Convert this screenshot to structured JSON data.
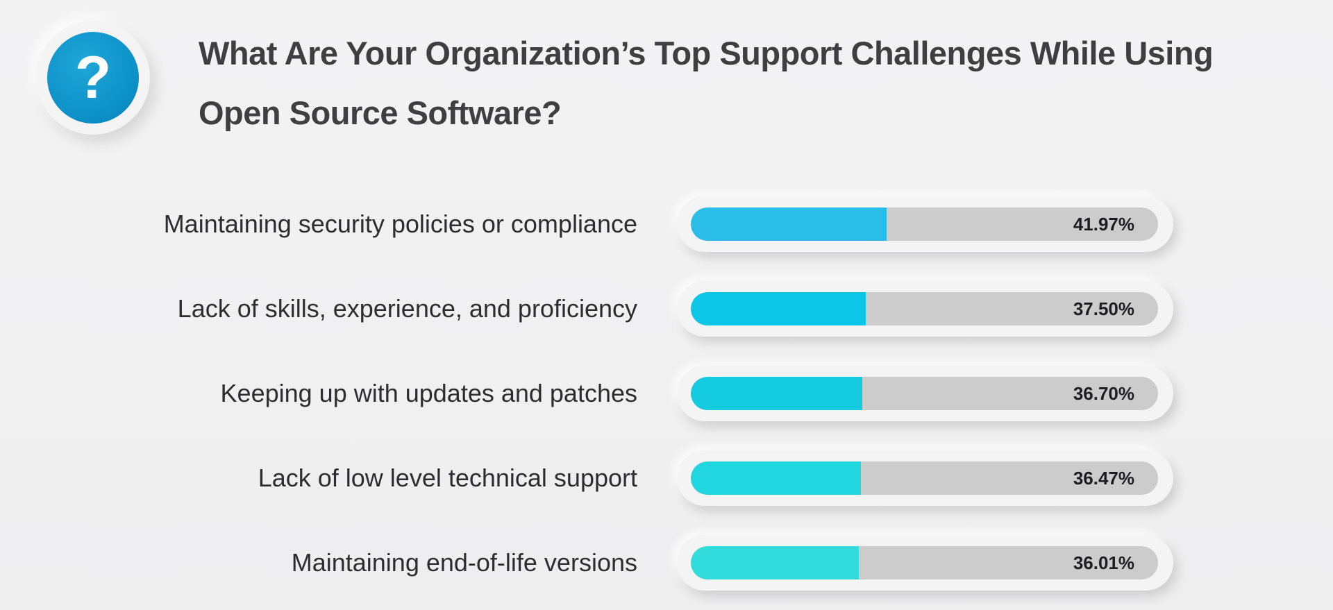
{
  "title": "What Are Your Organization’s Top Support Challenges While Using Open Source Software?",
  "icon": "question-mark-icon",
  "badge_glyph": "?",
  "colors": {
    "track": "#cccccc",
    "fills": [
      "#29bde8",
      "#0bc6e6",
      "#14cbe0",
      "#22d6df",
      "#33dcdc"
    ]
  },
  "chart_data": {
    "type": "bar",
    "orientation": "horizontal",
    "categories": [
      "Maintaining security policies or compliance",
      "Lack of skills, experience, and proficiency",
      "Keeping up with updates and patches",
      "Lack of low level technical support",
      "Maintaining end-of-life versions"
    ],
    "values": [
      41.97,
      37.5,
      36.7,
      36.47,
      36.01
    ],
    "value_labels": [
      "41.97%",
      "37.50%",
      "36.70%",
      "36.47%",
      "36.01%"
    ],
    "xlim": [
      0,
      100
    ],
    "title": "What Are Your Organization’s Top Support Challenges While Using Open Source Software?",
    "grid": false
  }
}
